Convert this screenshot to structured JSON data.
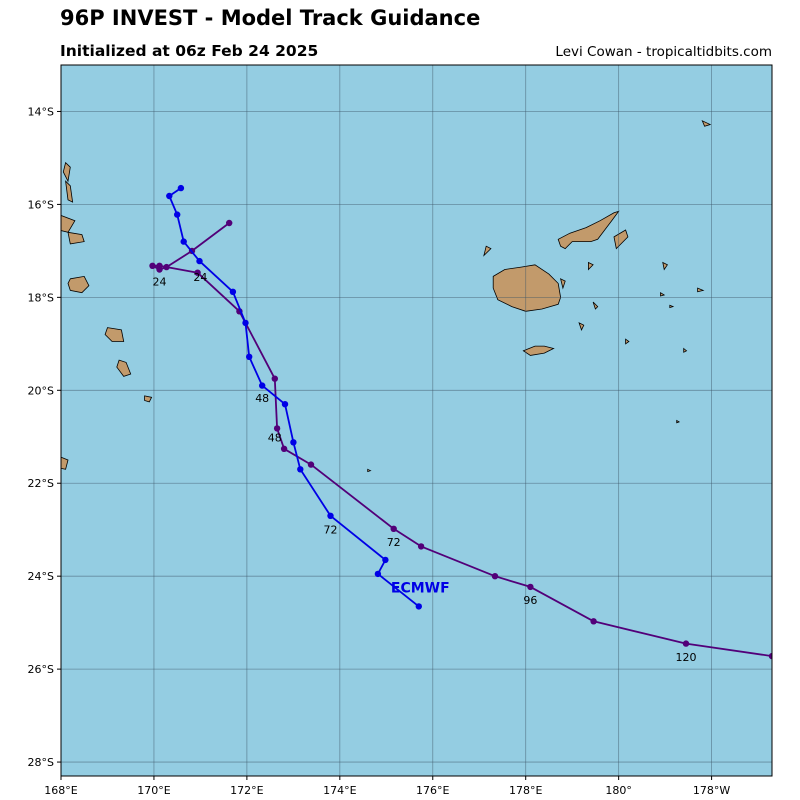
{
  "header": {
    "title": "96P INVEST - Model Track Guidance",
    "subtitle": "Initialized at 06z Feb 24 2025",
    "credit": "Levi Cowan - tropicaltidbits.com"
  },
  "colors": {
    "ocean": "#94cde2",
    "land": "#c29a6b",
    "ecmwf": "#0000e6",
    "track2": "#520079"
  },
  "map": {
    "lon_range": [
      168,
      183.3
    ],
    "lat_range": [
      -28.3,
      -13
    ],
    "lon_ticks": [
      {
        "lon": 168,
        "label": "168°E"
      },
      {
        "lon": 170,
        "label": "170°E"
      },
      {
        "lon": 172,
        "label": "172°E"
      },
      {
        "lon": 174,
        "label": "174°E"
      },
      {
        "lon": 176,
        "label": "176°E"
      },
      {
        "lon": 178,
        "label": "178°E"
      },
      {
        "lon": 180,
        "label": "180°"
      },
      {
        "lon": 182,
        "label": "178°W"
      }
    ],
    "lat_ticks": [
      {
        "lat": -14,
        "label": "14°S"
      },
      {
        "lat": -16,
        "label": "16°S"
      },
      {
        "lat": -18,
        "label": "18°S"
      },
      {
        "lat": -20,
        "label": "20°S"
      },
      {
        "lat": -22,
        "label": "22°S"
      },
      {
        "lat": -24,
        "label": "24°S"
      },
      {
        "lat": -26,
        "label": "26°S"
      },
      {
        "lat": -28,
        "label": "28°S"
      }
    ]
  },
  "tracks": [
    {
      "name": "ECMWF",
      "color": "#0000e6",
      "label_at": [
        175.1,
        -24.35
      ],
      "points": [
        [
          170.58,
          -15.65
        ],
        [
          170.33,
          -15.82
        ],
        [
          170.5,
          -16.22
        ],
        [
          170.64,
          -16.8
        ],
        [
          170.98,
          -17.22
        ],
        [
          171.7,
          -17.88
        ],
        [
          171.97,
          -18.55
        ],
        [
          172.05,
          -19.28
        ],
        [
          172.33,
          -19.9
        ],
        [
          172.82,
          -20.3
        ],
        [
          173.0,
          -21.12
        ],
        [
          173.15,
          -21.7
        ],
        [
          173.8,
          -22.7
        ],
        [
          174.98,
          -23.65
        ],
        [
          174.82,
          -23.95
        ],
        [
          175.7,
          -24.65
        ]
      ],
      "hour_labels": [
        {
          "hour": "24",
          "at": [
            171.0,
            -17.65
          ]
        },
        {
          "hour": "48",
          "at": [
            172.33,
            -20.25
          ]
        },
        {
          "hour": "72",
          "at": [
            173.8,
            -23.08
          ]
        }
      ]
    },
    {
      "name": "",
      "color": "#520079",
      "points": [
        [
          171.62,
          -16.4
        ],
        [
          170.82,
          -17.0
        ],
        [
          170.27,
          -17.35
        ],
        [
          170.12,
          -17.4
        ],
        [
          169.97,
          -17.32
        ],
        [
          170.12,
          -17.32
        ],
        [
          170.94,
          -17.47
        ],
        [
          171.84,
          -18.3
        ],
        [
          172.6,
          -19.75
        ],
        [
          172.65,
          -20.82
        ],
        [
          172.8,
          -21.26
        ],
        [
          173.38,
          -21.6
        ],
        [
          175.16,
          -22.98
        ],
        [
          175.75,
          -23.36
        ],
        [
          177.34,
          -24.0
        ],
        [
          178.1,
          -24.23
        ],
        [
          179.46,
          -24.97
        ],
        [
          181.45,
          -25.45
        ],
        [
          183.3,
          -25.72
        ]
      ],
      "hour_labels": [
        {
          "hour": "24",
          "at": [
            170.12,
            -17.75
          ]
        },
        {
          "hour": "48",
          "at": [
            172.6,
            -21.1
          ]
        },
        {
          "hour": "72",
          "at": [
            175.16,
            -23.35
          ]
        },
        {
          "hour": "96",
          "at": [
            178.1,
            -24.6
          ]
        },
        {
          "hour": "120",
          "at": [
            181.45,
            -25.82
          ]
        }
      ]
    }
  ],
  "land": [
    {
      "name": "viti-levu",
      "coords": [
        [
          177.3,
          -17.55
        ],
        [
          177.55,
          -17.4
        ],
        [
          177.9,
          -17.35
        ],
        [
          178.2,
          -17.3
        ],
        [
          178.5,
          -17.5
        ],
        [
          178.7,
          -17.7
        ],
        [
          178.75,
          -18.0
        ],
        [
          178.7,
          -18.15
        ],
        [
          178.35,
          -18.25
        ],
        [
          178.0,
          -18.3
        ],
        [
          177.7,
          -18.2
        ],
        [
          177.4,
          -18.05
        ],
        [
          177.3,
          -17.8
        ]
      ]
    },
    {
      "name": "vanua-levu",
      "coords": [
        [
          178.7,
          -16.75
        ],
        [
          178.95,
          -16.62
        ],
        [
          179.3,
          -16.5
        ],
        [
          179.6,
          -16.35
        ],
        [
          179.9,
          -16.18
        ],
        [
          180.0,
          -16.15
        ],
        [
          179.85,
          -16.35
        ],
        [
          179.7,
          -16.55
        ],
        [
          179.55,
          -16.75
        ],
        [
          179.4,
          -16.8
        ],
        [
          179.0,
          -16.8
        ],
        [
          178.85,
          -16.95
        ],
        [
          178.75,
          -16.9
        ]
      ]
    },
    {
      "name": "taveuni",
      "coords": [
        [
          179.9,
          -16.7
        ],
        [
          180.15,
          -16.55
        ],
        [
          180.2,
          -16.7
        ],
        [
          179.95,
          -16.95
        ]
      ]
    },
    {
      "name": "kadavu",
      "coords": [
        [
          177.95,
          -19.15
        ],
        [
          178.2,
          -19.05
        ],
        [
          178.4,
          -19.05
        ],
        [
          178.6,
          -19.1
        ],
        [
          178.4,
          -19.2
        ],
        [
          178.1,
          -19.25
        ]
      ]
    },
    {
      "name": "ovalau",
      "coords": [
        [
          178.75,
          -17.6
        ],
        [
          178.85,
          -17.65
        ],
        [
          178.8,
          -17.8
        ]
      ]
    },
    {
      "name": "yasawa",
      "coords": [
        [
          177.15,
          -16.9
        ],
        [
          177.25,
          -16.95
        ],
        [
          177.1,
          -17.1
        ]
      ]
    },
    {
      "name": "vanua-lava",
      "coords": [
        [
          167.75,
          -13.8
        ],
        [
          167.9,
          -13.85
        ],
        [
          167.8,
          -13.95
        ]
      ]
    },
    {
      "name": "espiritu-santo",
      "coords": [
        [
          166.65,
          -14.65
        ],
        [
          167.0,
          -14.6
        ],
        [
          167.25,
          -14.8
        ],
        [
          167.3,
          -15.3
        ],
        [
          167.15,
          -15.5
        ],
        [
          166.8,
          -15.55
        ],
        [
          166.7,
          -15.2
        ]
      ]
    },
    {
      "name": "maewo",
      "coords": [
        [
          168.1,
          -15.1
        ],
        [
          168.2,
          -15.2
        ],
        [
          168.15,
          -15.5
        ],
        [
          168.05,
          -15.3
        ]
      ]
    },
    {
      "name": "pentecost",
      "coords": [
        [
          168.1,
          -15.5
        ],
        [
          168.2,
          -15.6
        ],
        [
          168.25,
          -15.95
        ],
        [
          168.15,
          -15.9
        ]
      ]
    },
    {
      "name": "malekula",
      "coords": [
        [
          167.2,
          -15.9
        ],
        [
          167.6,
          -16.0
        ],
        [
          167.9,
          -16.2
        ],
        [
          168.3,
          -16.35
        ],
        [
          168.15,
          -16.6
        ],
        [
          167.75,
          -16.5
        ],
        [
          167.3,
          -16.35
        ]
      ]
    },
    {
      "name": "epi",
      "coords": [
        [
          168.15,
          -16.6
        ],
        [
          168.45,
          -16.65
        ],
        [
          168.5,
          -16.8
        ],
        [
          168.2,
          -16.85
        ]
      ]
    },
    {
      "name": "efate",
      "coords": [
        [
          168.2,
          -17.6
        ],
        [
          168.5,
          -17.55
        ],
        [
          168.6,
          -17.75
        ],
        [
          168.45,
          -17.9
        ],
        [
          168.2,
          -17.85
        ],
        [
          168.15,
          -17.7
        ]
      ]
    },
    {
      "name": "erromango",
      "coords": [
        [
          169.0,
          -18.65
        ],
        [
          169.3,
          -18.7
        ],
        [
          169.35,
          -18.95
        ],
        [
          169.1,
          -18.95
        ],
        [
          168.95,
          -18.8
        ]
      ]
    },
    {
      "name": "tanna",
      "coords": [
        [
          169.25,
          -19.35
        ],
        [
          169.4,
          -19.4
        ],
        [
          169.5,
          -19.65
        ],
        [
          169.35,
          -19.7
        ],
        [
          169.2,
          -19.5
        ]
      ]
    },
    {
      "name": "aneityum",
      "coords": [
        [
          169.8,
          -20.12
        ],
        [
          169.95,
          -20.15
        ],
        [
          169.9,
          -20.25
        ],
        [
          169.8,
          -20.22
        ]
      ]
    },
    {
      "name": "loyalty-is",
      "coords": [
        [
          167.9,
          -21.4
        ],
        [
          168.15,
          -21.5
        ],
        [
          168.1,
          -21.7
        ],
        [
          167.85,
          -21.65
        ]
      ]
    },
    {
      "name": "rotuma",
      "coords": [
        [
          181.8,
          -14.2
        ],
        [
          181.97,
          -14.28
        ],
        [
          181.85,
          -14.32
        ]
      ]
    },
    {
      "name": "lau-1",
      "coords": [
        [
          180.95,
          -17.25
        ],
        [
          181.05,
          -17.3
        ],
        [
          180.98,
          -17.4
        ]
      ]
    },
    {
      "name": "lau-2",
      "coords": [
        [
          181.7,
          -17.8
        ],
        [
          181.82,
          -17.85
        ],
        [
          181.7,
          -17.88
        ]
      ]
    },
    {
      "name": "lau-3",
      "coords": [
        [
          180.9,
          -17.9
        ],
        [
          180.98,
          -17.95
        ],
        [
          180.9,
          -17.97
        ]
      ]
    },
    {
      "name": "lau-4",
      "coords": [
        [
          181.1,
          -18.17
        ],
        [
          181.17,
          -18.2
        ],
        [
          181.1,
          -18.22
        ]
      ]
    },
    {
      "name": "lau-5",
      "coords": [
        [
          180.15,
          -18.9
        ],
        [
          180.22,
          -18.95
        ],
        [
          180.15,
          -19.0
        ]
      ]
    },
    {
      "name": "lau-6",
      "coords": [
        [
          181.4,
          -19.1
        ],
        [
          181.46,
          -19.15
        ],
        [
          181.4,
          -19.18
        ]
      ]
    },
    {
      "name": "lakeba",
      "coords": [
        [
          179.45,
          -18.1
        ],
        [
          179.55,
          -18.2
        ],
        [
          179.5,
          -18.25
        ]
      ]
    },
    {
      "name": "koro",
      "coords": [
        [
          179.35,
          -17.25
        ],
        [
          179.45,
          -17.3
        ],
        [
          179.35,
          -17.4
        ]
      ]
    },
    {
      "name": "moala",
      "coords": [
        [
          179.15,
          -18.55
        ],
        [
          179.25,
          -18.6
        ],
        [
          179.2,
          -18.7
        ]
      ]
    },
    {
      "name": "ono-i-lau",
      "coords": [
        [
          181.25,
          -20.65
        ],
        [
          181.3,
          -20.68
        ],
        [
          181.25,
          -20.7
        ]
      ]
    },
    {
      "name": "hunter",
      "coords": [
        [
          174.6,
          -21.7
        ],
        [
          174.66,
          -21.73
        ],
        [
          174.6,
          -21.75
        ]
      ]
    }
  ]
}
